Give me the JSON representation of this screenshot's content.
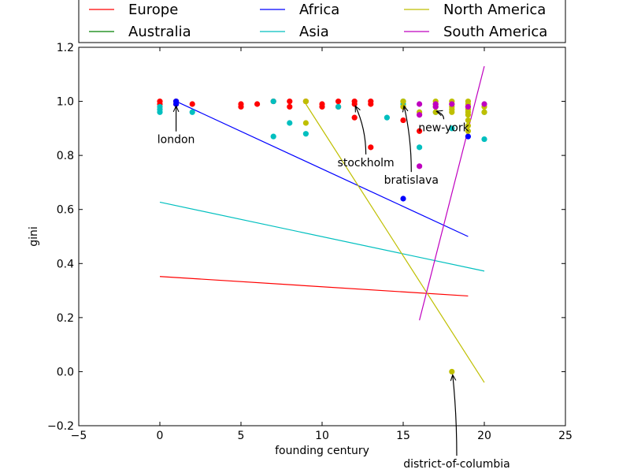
{
  "chart_data": {
    "type": "scatter",
    "xlabel": "founding century",
    "ylabel": "gini",
    "xlim": [
      -5,
      25
    ],
    "ylim": [
      -0.2,
      1.2
    ],
    "xticks": [
      -5,
      0,
      5,
      10,
      15,
      20,
      25
    ],
    "yticks": [
      -0.2,
      0.0,
      0.2,
      0.4,
      0.6,
      0.8,
      1.0,
      1.2
    ],
    "xtick_labels": [
      "−5",
      "0",
      "5",
      "10",
      "15",
      "20",
      "25"
    ],
    "ytick_labels": [
      "−0.2",
      "0.0",
      "0.2",
      "0.4",
      "0.6",
      "0.8",
      "1.0",
      "1.2"
    ],
    "grid": false,
    "legend_position": "top",
    "series": [
      {
        "name": "Europe",
        "color": "#ff0000",
        "points": [
          [
            0,
            1.0
          ],
          [
            0,
            0.99
          ],
          [
            1,
            0.99
          ],
          [
            1,
            1.0
          ],
          [
            2,
            0.99
          ],
          [
            5,
            0.99
          ],
          [
            5,
            0.98
          ],
          [
            6,
            0.99
          ],
          [
            7,
            1.0
          ],
          [
            8,
            1.0
          ],
          [
            8,
            0.98
          ],
          [
            9,
            1.0
          ],
          [
            10,
            0.99
          ],
          [
            10,
            0.98
          ],
          [
            11,
            1.0
          ],
          [
            11,
            0.98
          ],
          [
            12,
            1.0
          ],
          [
            12,
            0.99
          ],
          [
            12,
            0.94
          ],
          [
            13,
            1.0
          ],
          [
            13,
            0.99
          ],
          [
            13,
            0.83
          ],
          [
            15,
            0.93
          ],
          [
            15,
            0.98
          ],
          [
            16,
            0.89
          ],
          [
            17,
            0.99
          ]
        ],
        "trend": [
          [
            0,
            0.352
          ],
          [
            19,
            0.28
          ]
        ]
      },
      {
        "name": "Australia",
        "color": "#008000",
        "points": [],
        "trend": []
      },
      {
        "name": "Africa",
        "color": "#0000ff",
        "points": [
          [
            1,
            1.0
          ],
          [
            1,
            0.99
          ],
          [
            15,
            0.64
          ],
          [
            19,
            0.87
          ]
        ],
        "trend": [
          [
            1,
            1.0
          ],
          [
            19,
            0.5
          ]
        ]
      },
      {
        "name": "Asia",
        "color": "#00bfbf",
        "points": [
          [
            0,
            0.98
          ],
          [
            0,
            0.97
          ],
          [
            0,
            0.96
          ],
          [
            2,
            0.96
          ],
          [
            7,
            1.0
          ],
          [
            7,
            0.87
          ],
          [
            8,
            0.92
          ],
          [
            9,
            0.88
          ],
          [
            11,
            0.98
          ],
          [
            14,
            0.94
          ],
          [
            15,
            1.0
          ],
          [
            15,
            0.99
          ],
          [
            16,
            0.83
          ],
          [
            17,
            0.96
          ],
          [
            18,
            0.9
          ],
          [
            20,
            0.96
          ],
          [
            20,
            0.86
          ]
        ],
        "trend": [
          [
            0,
            0.627
          ],
          [
            20,
            0.372
          ]
        ]
      },
      {
        "name": "North America",
        "color": "#bfbf00",
        "points": [
          [
            9,
            0.92
          ],
          [
            9,
            1.0
          ],
          [
            15,
            1.0
          ],
          [
            15,
            0.98
          ],
          [
            16,
            0.96
          ],
          [
            17,
            1.0
          ],
          [
            17,
            0.98
          ],
          [
            17,
            0.96
          ],
          [
            18,
            1.0
          ],
          [
            18,
            0.99
          ],
          [
            18,
            0.98
          ],
          [
            18,
            0.97
          ],
          [
            18,
            0.96
          ],
          [
            18,
            0.0
          ],
          [
            19,
            1.0
          ],
          [
            19,
            0.99
          ],
          [
            19,
            0.98
          ],
          [
            19,
            0.97
          ],
          [
            19,
            0.96
          ],
          [
            19,
            0.95
          ],
          [
            19,
            0.93
          ],
          [
            19,
            0.91
          ],
          [
            19,
            0.89
          ],
          [
            20,
            0.98
          ],
          [
            20,
            0.96
          ]
        ],
        "trend": [
          [
            9,
            0.99
          ],
          [
            20,
            -0.04
          ]
        ]
      },
      {
        "name": "South America",
        "color": "#bf00bf",
        "points": [
          [
            16,
            0.99
          ],
          [
            16,
            0.95
          ],
          [
            16,
            0.76
          ],
          [
            17,
            0.99
          ],
          [
            17,
            0.98
          ],
          [
            18,
            0.99
          ],
          [
            19,
            0.98
          ],
          [
            20,
            0.99
          ]
        ],
        "trend": [
          [
            16,
            0.19
          ],
          [
            20,
            1.13
          ]
        ]
      }
    ],
    "annotations": [
      {
        "text": "london",
        "point": [
          1,
          0.995
        ],
        "text_at": [
          1,
          0.845
        ],
        "anchor": "middle",
        "curved": false
      },
      {
        "text": "stockholm",
        "point": [
          12,
          0.995
        ],
        "text_at": [
          12.7,
          0.76
        ],
        "anchor": "middle",
        "curved": true
      },
      {
        "text": "bratislava",
        "point": [
          15,
          0.995
        ],
        "text_at": [
          15.5,
          0.695
        ],
        "anchor": "middle",
        "curved": true
      },
      {
        "text": "new-york",
        "point": [
          17,
          0.975
        ],
        "text_at": [
          17.5,
          0.89
        ],
        "anchor": "middle",
        "curved": true
      },
      {
        "text": "district-of-columbia",
        "point": [
          18,
          0.0
        ],
        "text_at": [
          18.3,
          -0.355
        ],
        "anchor": "middle",
        "curved": true
      }
    ]
  }
}
